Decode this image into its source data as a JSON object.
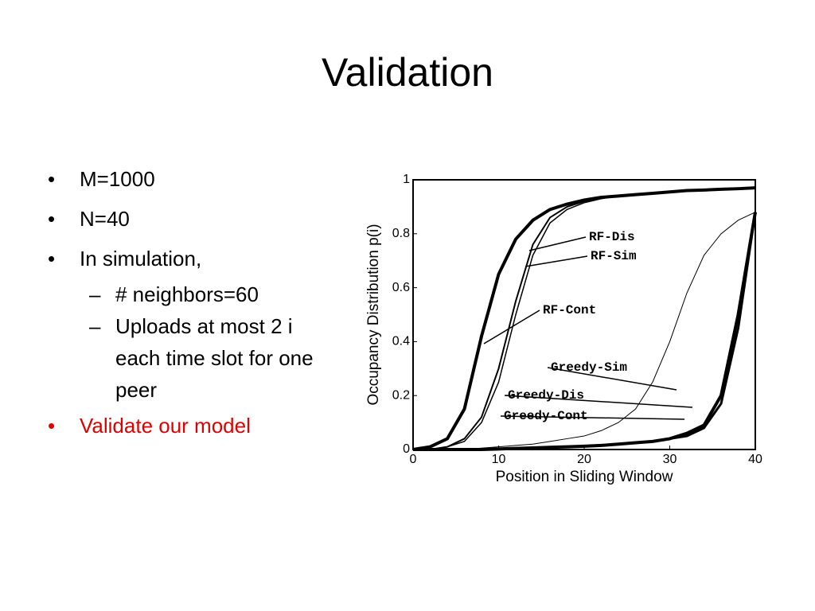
{
  "slide": {
    "title": "Validation",
    "bullets": [
      {
        "text": "M=1000"
      },
      {
        "text": "N=40"
      },
      {
        "text": "In simulation,",
        "children": [
          {
            "text": "# neighbors=60"
          },
          {
            "text": "Uploads at most 2 i each time slot for one peer"
          }
        ]
      },
      {
        "text": "Validate our model",
        "color": "#e00000"
      }
    ]
  },
  "chart_data": {
    "type": "line",
    "xlabel": "Position in Sliding Window",
    "ylabel": "Occupancy Distribution p(i)",
    "x": [
      0,
      2,
      4,
      6,
      8,
      10,
      12,
      14,
      16,
      18,
      20,
      22,
      24,
      26,
      28,
      30,
      32,
      34,
      36,
      38,
      40
    ],
    "xlim": [
      0,
      40
    ],
    "xticks": [
      0,
      10,
      20,
      30,
      40
    ],
    "ylim": [
      0,
      1
    ],
    "yticks": [
      0,
      0.2,
      0.4,
      0.6,
      0.8,
      1
    ],
    "series": [
      {
        "name": "RF-Dis",
        "color": "#000000",
        "values": [
          0,
          0,
          0.01,
          0.04,
          0.12,
          0.3,
          0.55,
          0.76,
          0.86,
          0.9,
          0.92,
          0.935,
          0.94,
          0.945,
          0.95,
          0.955,
          0.96,
          0.962,
          0.965,
          0.967,
          0.97
        ]
      },
      {
        "name": "RF-Sim",
        "color": "#000000",
        "values": [
          0,
          0,
          0.01,
          0.03,
          0.1,
          0.25,
          0.5,
          0.72,
          0.84,
          0.89,
          0.915,
          0.93,
          0.94,
          0.945,
          0.95,
          0.955,
          0.96,
          0.962,
          0.965,
          0.967,
          0.97
        ]
      },
      {
        "name": "RF-Cont",
        "color": "#000000",
        "values": [
          0,
          0.01,
          0.04,
          0.15,
          0.42,
          0.65,
          0.78,
          0.85,
          0.89,
          0.91,
          0.925,
          0.935,
          0.94,
          0.945,
          0.95,
          0.955,
          0.96,
          0.962,
          0.965,
          0.967,
          0.97
        ]
      },
      {
        "name": "Greedy-Sim",
        "color": "#000000",
        "values": [
          0,
          0,
          0,
          0,
          0.005,
          0.01,
          0.015,
          0.02,
          0.03,
          0.04,
          0.05,
          0.07,
          0.1,
          0.15,
          0.25,
          0.4,
          0.58,
          0.72,
          0.8,
          0.85,
          0.88
        ]
      },
      {
        "name": "Greedy-Dis",
        "color": "#000000",
        "values": [
          0,
          0,
          0,
          0,
          0,
          0.002,
          0.004,
          0.006,
          0.008,
          0.01,
          0.012,
          0.015,
          0.02,
          0.025,
          0.03,
          0.04,
          0.06,
          0.09,
          0.2,
          0.5,
          0.88
        ]
      },
      {
        "name": "Greedy-Cont",
        "color": "#000000",
        "values": [
          0,
          0,
          0,
          0,
          0,
          0.002,
          0.004,
          0.006,
          0.008,
          0.01,
          0.012,
          0.015,
          0.02,
          0.025,
          0.03,
          0.04,
          0.05,
          0.08,
          0.17,
          0.45,
          0.88
        ]
      }
    ]
  }
}
